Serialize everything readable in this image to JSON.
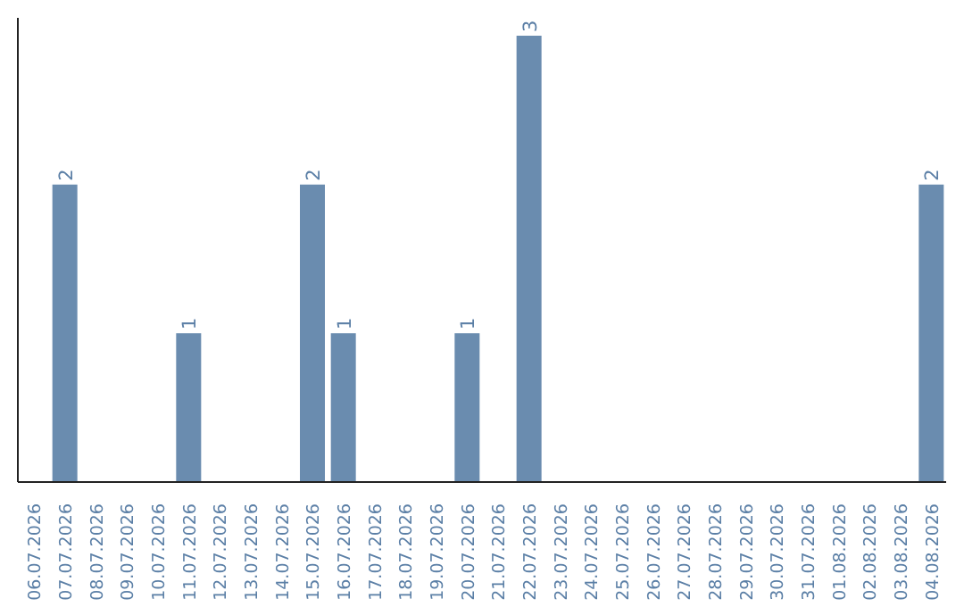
{
  "chart_data": {
    "type": "bar",
    "categories": [
      "06.07.2026",
      "07.07.2026",
      "08.07.2026",
      "09.07.2026",
      "10.07.2026",
      "11.07.2026",
      "12.07.2026",
      "13.07.2026",
      "14.07.2026",
      "15.07.2026",
      "16.07.2026",
      "17.07.2026",
      "18.07.2026",
      "19.07.2026",
      "20.07.2026",
      "21.07.2026",
      "22.07.2026",
      "23.07.2026",
      "24.07.2026",
      "25.07.2026",
      "26.07.2026",
      "27.07.2026",
      "28.07.2026",
      "29.07.2026",
      "30.07.2026",
      "31.07.2026",
      "01.08.2026",
      "02.08.2026",
      "03.08.2026",
      "04.08.2026"
    ],
    "values": [
      0,
      2,
      0,
      0,
      0,
      1,
      0,
      0,
      0,
      2,
      1,
      0,
      0,
      0,
      1,
      0,
      3,
      0,
      0,
      0,
      0,
      0,
      0,
      0,
      0,
      0,
      0,
      0,
      0,
      2
    ],
    "value_labels": [
      null,
      "2",
      null,
      null,
      null,
      "1",
      null,
      null,
      null,
      "2",
      "1",
      null,
      null,
      null,
      "1",
      null,
      "3",
      null,
      null,
      null,
      null,
      null,
      null,
      null,
      null,
      null,
      null,
      null,
      null,
      "2"
    ],
    "color": "#6a8caf",
    "grid": false,
    "tick_labels": "x"
  }
}
